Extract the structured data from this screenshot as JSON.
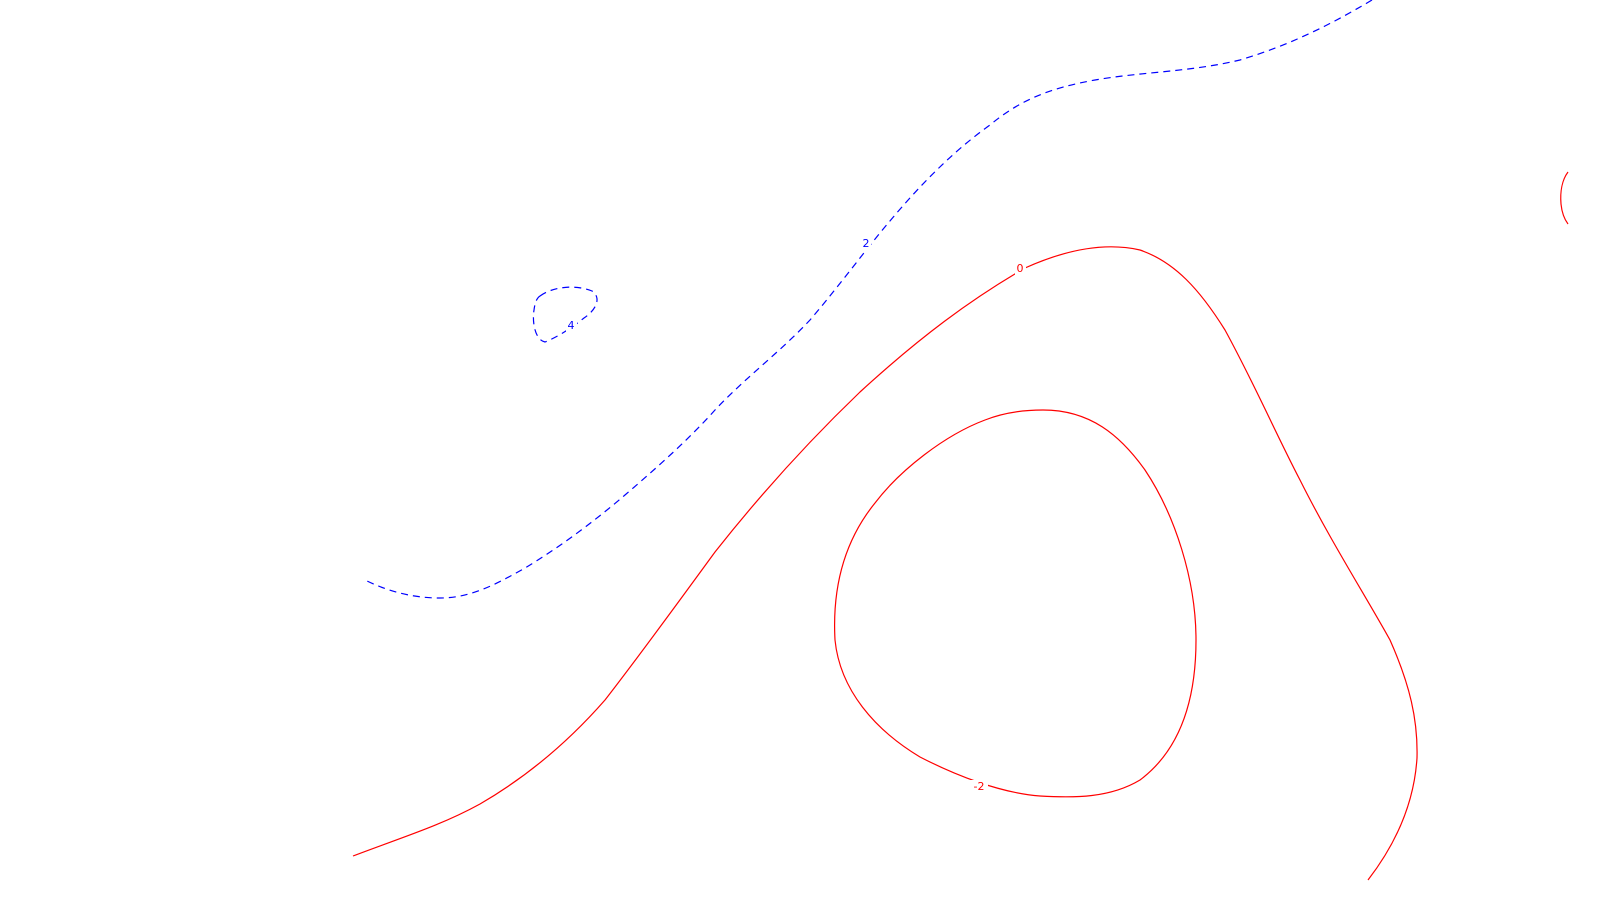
{
  "colors": {
    "background": "#ffffff",
    "positive_contour": "#0000ff",
    "negative_contour": "#ff0000"
  },
  "contours": {
    "positive_style": "dashed",
    "negative_style": "solid",
    "labels": [
      {
        "id": "pos-2",
        "text": "2",
        "sign": "positive"
      },
      {
        "id": "pos-4",
        "text": "4",
        "sign": "positive"
      },
      {
        "id": "zero",
        "text": "0",
        "sign": "negative"
      },
      {
        "id": "neg-2",
        "text": "-2",
        "sign": "negative"
      }
    ]
  }
}
